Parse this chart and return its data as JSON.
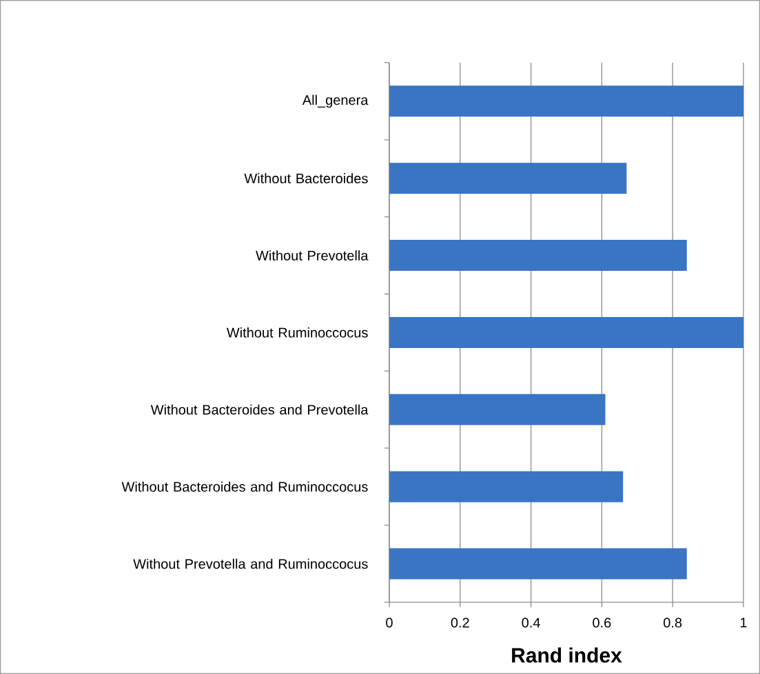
{
  "chart_data": {
    "type": "bar",
    "orientation": "horizontal",
    "categories": [
      "All_genera",
      "Without Bacteroides",
      "Without Prevotella",
      "Without Ruminoccocus",
      "Without Bacteroides and Prevotella",
      "Without Bacteroides and Ruminoccocus",
      "Without Prevotella and Ruminoccocus"
    ],
    "values": [
      1,
      0.67,
      0.84,
      1,
      0.61,
      0.66,
      0.84
    ],
    "color": "#3a75c4",
    "xlabel": "Rand index",
    "xlim": [
      0,
      1
    ],
    "xticks": [
      0,
      0.2,
      0.4,
      0.6,
      0.8,
      1
    ],
    "grid": "x"
  }
}
